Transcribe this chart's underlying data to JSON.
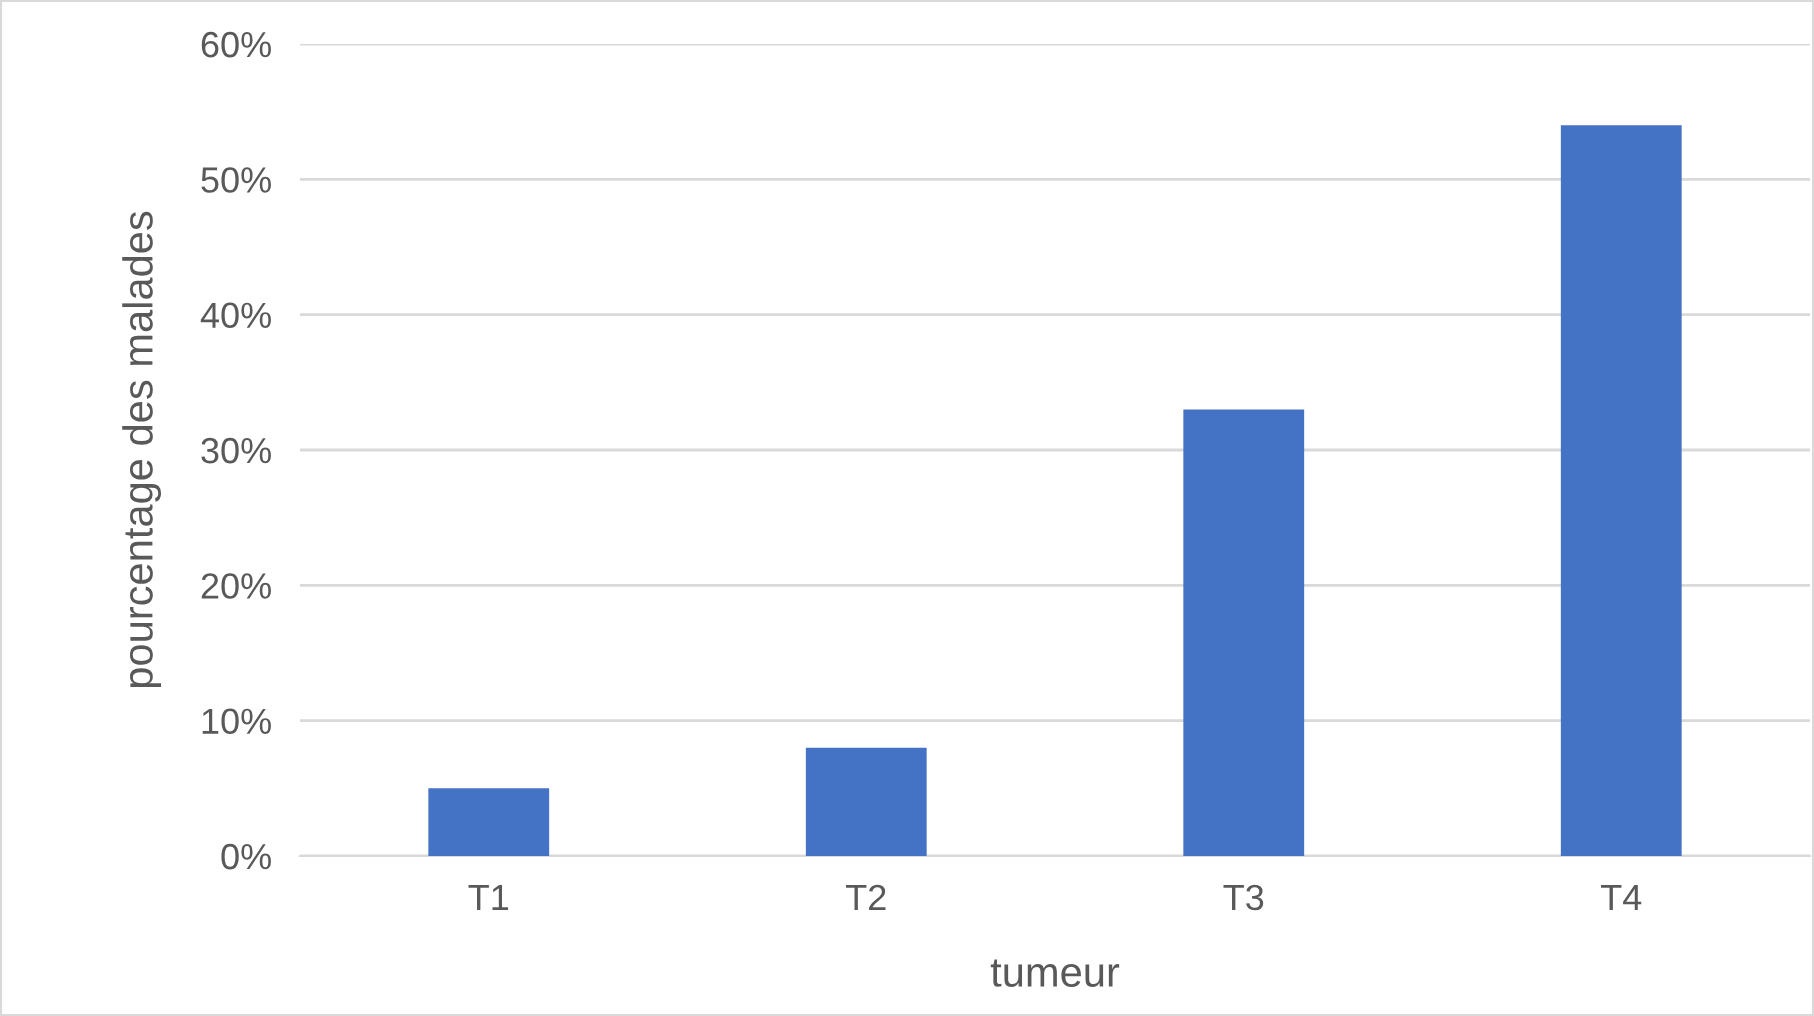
{
  "chart_data": {
    "type": "bar",
    "xlabel": "tumeur",
    "ylabel": "pourcentage des malades",
    "categories": [
      "T1",
      "T2",
      "T3",
      "T4"
    ],
    "values": [
      5,
      8,
      33,
      54
    ],
    "color": "#4472c4",
    "ylim": [
      0,
      60
    ],
    "yticks": [
      {
        "value": 0,
        "label": "0%"
      },
      {
        "value": 10,
        "label": "10%"
      },
      {
        "value": 20,
        "label": "20%"
      },
      {
        "value": 30,
        "label": "30%"
      },
      {
        "value": 40,
        "label": "40%"
      },
      {
        "value": 50,
        "label": "50%"
      },
      {
        "value": 60,
        "label": "60%"
      }
    ],
    "grid": "y",
    "legend": false
  }
}
